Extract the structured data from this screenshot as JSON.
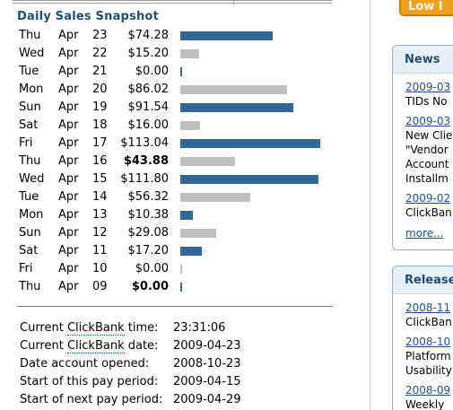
{
  "snapshot": {
    "title": "Daily Sales Snapshot",
    "rows": [
      {
        "day": "Thu",
        "month": "Apr",
        "date": "23",
        "amount": "$74.28",
        "bold": false
      },
      {
        "day": "Wed",
        "month": "Apr",
        "date": "22",
        "amount": "$15.20",
        "bold": false
      },
      {
        "day": "Tue",
        "month": "Apr",
        "date": "21",
        "amount": "$0.00",
        "bold": false
      },
      {
        "day": "Mon",
        "month": "Apr",
        "date": "20",
        "amount": "$86.02",
        "bold": false
      },
      {
        "day": "Sun",
        "month": "Apr",
        "date": "19",
        "amount": "$91.54",
        "bold": false
      },
      {
        "day": "Sat",
        "month": "Apr",
        "date": "18",
        "amount": "$16.00",
        "bold": false
      },
      {
        "day": "Fri",
        "month": "Apr",
        "date": "17",
        "amount": "$113.04",
        "bold": false
      },
      {
        "day": "Thu",
        "month": "Apr",
        "date": "16",
        "amount": "$43.88",
        "bold": true
      },
      {
        "day": "Wed",
        "month": "Apr",
        "date": "15",
        "amount": "$111.80",
        "bold": false
      },
      {
        "day": "Tue",
        "month": "Apr",
        "date": "14",
        "amount": "$56.32",
        "bold": false
      },
      {
        "day": "Mon",
        "month": "Apr",
        "date": "13",
        "amount": "$10.38",
        "bold": false
      },
      {
        "day": "Sun",
        "month": "Apr",
        "date": "12",
        "amount": "$29.08",
        "bold": false
      },
      {
        "day": "Sat",
        "month": "Apr",
        "date": "11",
        "amount": "$17.20",
        "bold": false
      },
      {
        "day": "Fri",
        "month": "Apr",
        "date": "10",
        "amount": "$0.00",
        "bold": false
      },
      {
        "day": "Thu",
        "month": "Apr",
        "date": "09",
        "amount": "$0.00",
        "bold": true
      }
    ]
  },
  "chart_data": {
    "type": "bar",
    "categories": [
      "Apr 23",
      "Apr 22",
      "Apr 21",
      "Apr 20",
      "Apr 19",
      "Apr 18",
      "Apr 17",
      "Apr 16",
      "Apr 15",
      "Apr 14",
      "Apr 13",
      "Apr 12",
      "Apr 11",
      "Apr 10",
      "Apr 09"
    ],
    "values": [
      74.28,
      15.2,
      0,
      86.02,
      91.54,
      16.0,
      113.04,
      43.88,
      111.8,
      56.32,
      10.38,
      29.08,
      17.2,
      0,
      0
    ],
    "bar_colors": [
      "#336699",
      "#c0c0c0",
      "#336699",
      "#c0c0c0",
      "#336699",
      "#c0c0c0",
      "#336699",
      "#c0c0c0",
      "#336699",
      "#c0c0c0",
      "#336699",
      "#c0c0c0",
      "#336699",
      "#c0c0c0",
      "#336699"
    ],
    "orientation": "horizontal",
    "xlim": [
      0,
      113.04
    ]
  },
  "info": {
    "rows": [
      {
        "label_pre": "Current ",
        "label_cb": "ClickBank",
        "label_post": " time:",
        "value": "23:31:06"
      },
      {
        "label_pre": "Current ",
        "label_cb": "ClickBank",
        "label_post": " date:",
        "value": "2009-04-23"
      },
      {
        "label_pre": "Date account opened:",
        "label_cb": "",
        "label_post": "",
        "value": "2008-10-23"
      },
      {
        "label_pre": "Start of this pay period:",
        "label_cb": "",
        "label_post": "",
        "value": "2009-04-15"
      },
      {
        "label_pre": "Start of next pay period:",
        "label_cb": "",
        "label_post": "",
        "value": "2009-04-29"
      }
    ]
  },
  "sidebar": {
    "promo_label": "Low I",
    "news": {
      "title": "News",
      "items": [
        {
          "text": "2009-03",
          "link": true,
          "gap": false
        },
        {
          "text": "TIDs No",
          "link": false,
          "gap": false
        },
        {
          "text": "2009-03",
          "link": true,
          "gap": true
        },
        {
          "text": "New Clie",
          "link": false,
          "gap": false
        },
        {
          "text": "\"Vendor",
          "link": false,
          "gap": false
        },
        {
          "text": "Account",
          "link": false,
          "gap": false
        },
        {
          "text": "Installm",
          "link": false,
          "gap": false
        },
        {
          "text": "2009-02",
          "link": true,
          "gap": true
        },
        {
          "text": "ClickBan",
          "link": false,
          "gap": false
        }
      ],
      "more_label": "more..."
    },
    "releases": {
      "title": "Release",
      "items": [
        {
          "text": "2008-11",
          "link": true,
          "gap": false
        },
        {
          "text": "ClickBan",
          "link": false,
          "gap": false
        },
        {
          "text": "2008-10",
          "link": true,
          "gap": true
        },
        {
          "text": "Platform",
          "link": false,
          "gap": false
        },
        {
          "text": "Usability",
          "link": false,
          "gap": false
        },
        {
          "text": "2008-09",
          "link": true,
          "gap": true
        },
        {
          "text": "Weekly",
          "link": false,
          "gap": false
        }
      ]
    }
  }
}
